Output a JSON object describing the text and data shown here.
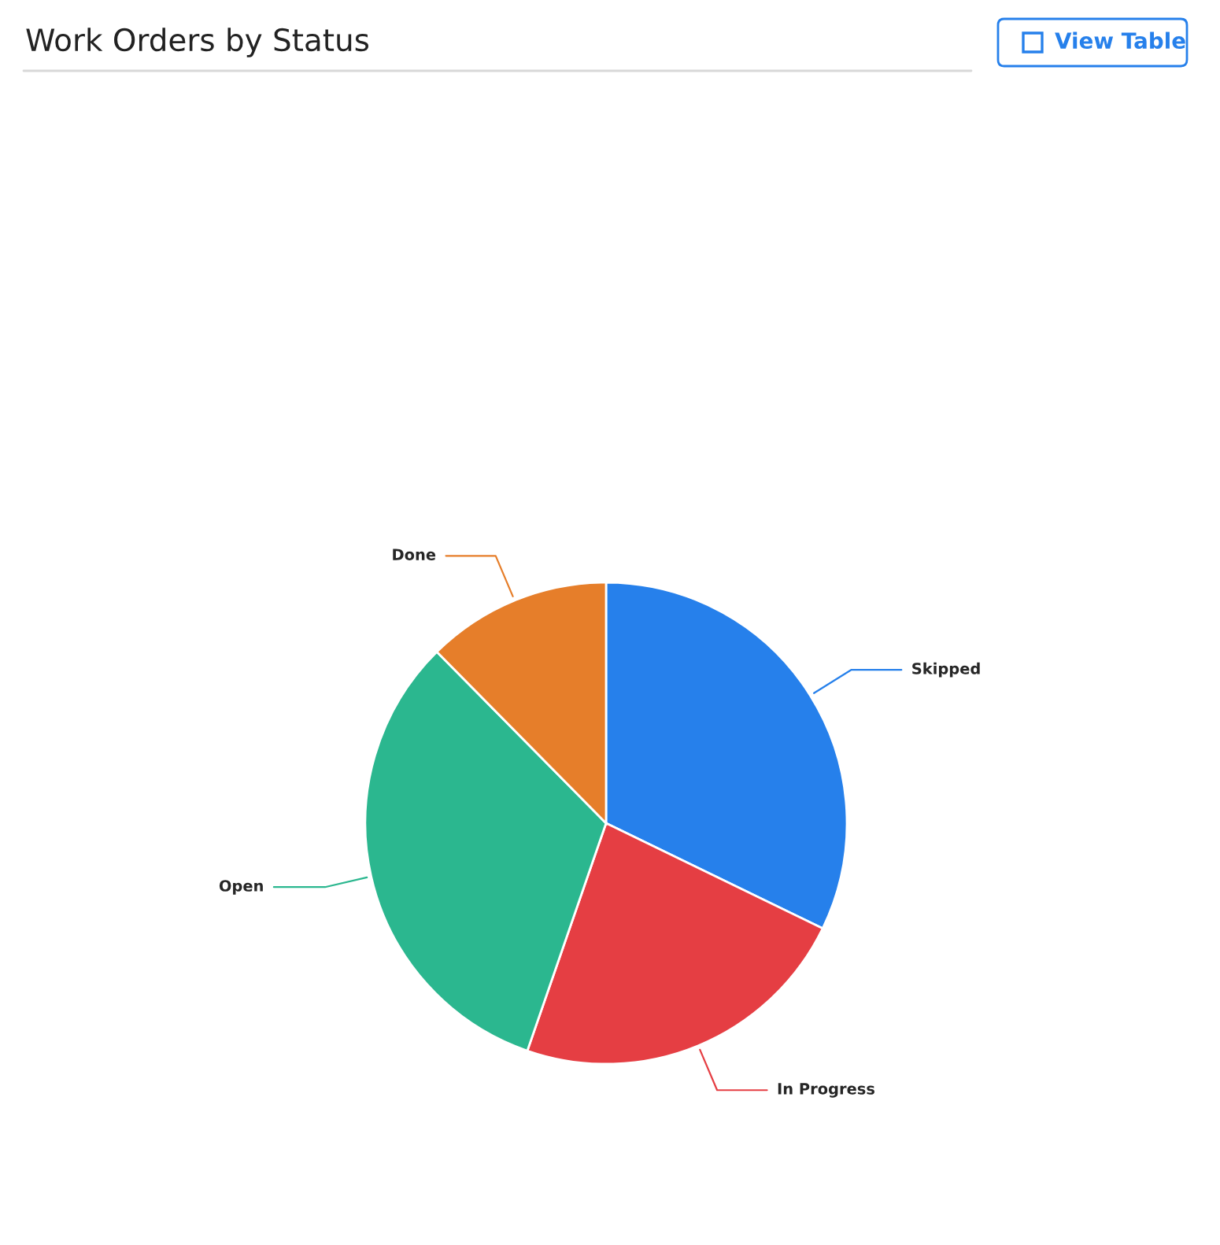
{
  "chart_data": {
    "type": "pie",
    "title": "Work Orders by Status",
    "categories": [
      "Skipped",
      "In Progress",
      "Open",
      "Done"
    ],
    "values": [
      32.2,
      23.1,
      32.3,
      12.4
    ],
    "colors": [
      "#2680eb",
      "#e53e43",
      "#2bb78f",
      "#e67e2a"
    ],
    "annotations": [
      "View Table"
    ]
  }
}
